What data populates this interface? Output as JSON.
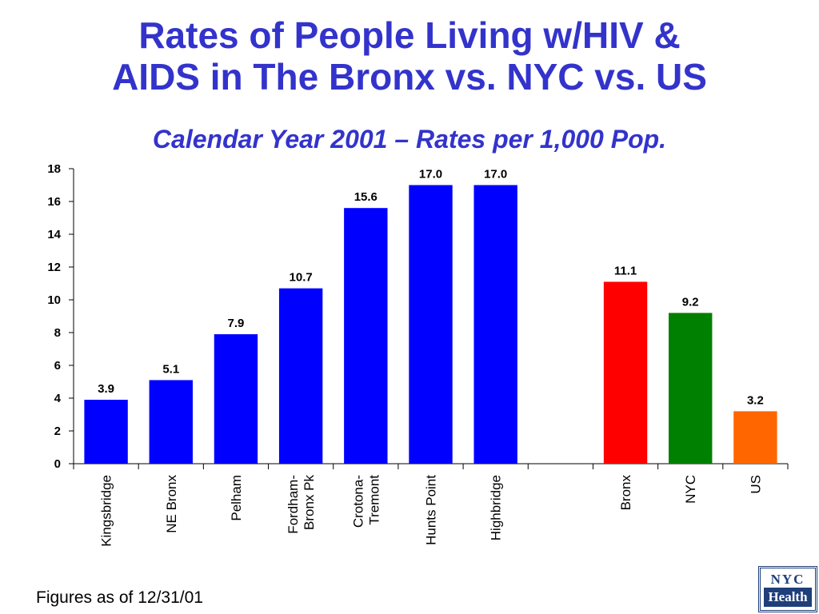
{
  "title_line1": "Rates of People Living w/HIV &",
  "title_line2": "AIDS in The Bronx vs. NYC vs. US",
  "subtitle": "Calendar Year 2001 – Rates per 1,000 Pop.",
  "footnote": "Figures as of 12/31/01",
  "logo": {
    "top": "NYC",
    "bottom": "Health"
  },
  "colors": {
    "title": "#3333CC"
  },
  "chart_data": {
    "type": "bar",
    "title": "Rates of People Living w/HIV & AIDS in The Bronx vs. NYC vs. US",
    "subtitle": "Calendar Year 2001 – Rates per 1,000 Pop.",
    "xlabel": "",
    "ylabel": "",
    "ylim": [
      0,
      18
    ],
    "yticks": [
      0,
      2,
      4,
      6,
      8,
      10,
      12,
      14,
      16,
      18
    ],
    "grid": false,
    "categories": [
      [
        "Kingsbridge"
      ],
      [
        "NE Bronx"
      ],
      [
        "Pelham"
      ],
      [
        "Fordham-",
        "Bronx Pk"
      ],
      [
        "Crotona-",
        "Tremont"
      ],
      [
        "Hunts Point"
      ],
      [
        "Highbridge"
      ],
      [
        ""
      ],
      [
        "Bronx"
      ],
      [
        "NYC"
      ],
      [
        "US"
      ]
    ],
    "values": [
      3.9,
      5.1,
      7.9,
      10.7,
      15.6,
      17.0,
      17.0,
      null,
      11.1,
      9.2,
      3.2
    ],
    "value_labels": [
      "3.9",
      "5.1",
      "7.9",
      "10.7",
      "15.6",
      "17.0",
      "17.0",
      "",
      "11.1",
      "9.2",
      "3.2"
    ],
    "bar_colors": [
      "#0000FF",
      "#0000FF",
      "#0000FF",
      "#0000FF",
      "#0000FF",
      "#0000FF",
      "#0000FF",
      "",
      "#FF0000",
      "#008000",
      "#FF6600"
    ]
  }
}
